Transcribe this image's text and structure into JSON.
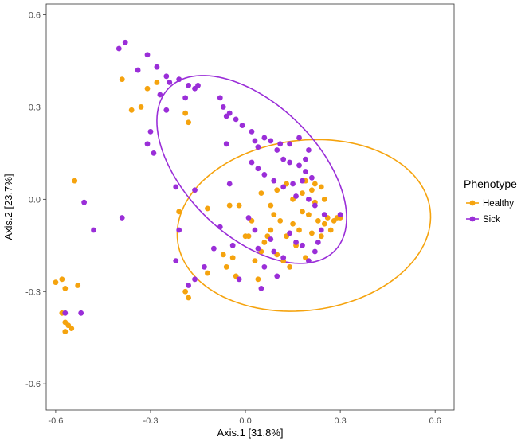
{
  "chart_data": {
    "type": "scatter",
    "title": "",
    "xlabel": "Axis.1   [31.8%]",
    "ylabel": "Axis.2   [23.7%]",
    "xlim": [
      -0.63,
      0.66
    ],
    "ylim": [
      -0.685,
      0.635
    ],
    "x_ticks": [
      -0.6,
      -0.3,
      0.0,
      0.3,
      0.6
    ],
    "x_tick_labels": [
      "-0.6",
      "-0.3",
      "0.0",
      "0.3",
      "0.6"
    ],
    "y_ticks": [
      -0.6,
      -0.3,
      0.0,
      0.3,
      0.6
    ],
    "y_tick_labels": [
      "-0.6",
      "-0.3",
      "0.0",
      "0.3",
      "0.6"
    ],
    "grid": false,
    "legend": {
      "title": "Phenotype",
      "placement": "right",
      "entries": [
        "Healthy",
        "Sick"
      ]
    },
    "series": [
      {
        "name": "Healthy",
        "color": "#F5A30E",
        "points": [
          [
            -0.6,
            -0.27
          ],
          [
            -0.58,
            -0.26
          ],
          [
            -0.57,
            -0.29
          ],
          [
            -0.58,
            -0.37
          ],
          [
            -0.57,
            -0.4
          ],
          [
            -0.57,
            -0.43
          ],
          [
            -0.56,
            -0.41
          ],
          [
            -0.55,
            -0.42
          ],
          [
            -0.53,
            -0.28
          ],
          [
            -0.54,
            0.06
          ],
          [
            -0.39,
            0.39
          ],
          [
            -0.36,
            0.29
          ],
          [
            -0.33,
            0.3
          ],
          [
            -0.31,
            0.36
          ],
          [
            -0.28,
            0.38
          ],
          [
            -0.19,
            0.28
          ],
          [
            -0.18,
            0.25
          ],
          [
            -0.19,
            -0.3
          ],
          [
            -0.18,
            -0.32
          ],
          [
            -0.12,
            -0.24
          ],
          [
            -0.07,
            -0.18
          ],
          [
            -0.06,
            -0.22
          ],
          [
            -0.04,
            -0.19
          ],
          [
            -0.03,
            -0.25
          ],
          [
            -0.02,
            -0.02
          ],
          [
            0.0,
            -0.12
          ],
          [
            0.01,
            -0.12
          ],
          [
            0.02,
            -0.07
          ],
          [
            0.03,
            -0.2
          ],
          [
            0.04,
            -0.26
          ],
          [
            0.05,
            -0.17
          ],
          [
            0.06,
            -0.14
          ],
          [
            0.07,
            -0.12
          ],
          [
            0.08,
            -0.1
          ],
          [
            0.09,
            -0.05
          ],
          [
            0.1,
            -0.18
          ],
          [
            0.11,
            -0.07
          ],
          [
            0.12,
            -0.2
          ],
          [
            0.13,
            -0.12
          ],
          [
            0.14,
            -0.22
          ],
          [
            0.15,
            -0.08
          ],
          [
            0.16,
            -0.15
          ],
          [
            0.17,
            -0.1
          ],
          [
            0.18,
            -0.04
          ],
          [
            0.19,
            -0.19
          ],
          [
            0.2,
            -0.05
          ],
          [
            0.21,
            -0.11
          ],
          [
            0.22,
            -0.01
          ],
          [
            0.23,
            -0.07
          ],
          [
            0.24,
            -0.12
          ],
          [
            0.25,
            -0.08
          ],
          [
            0.26,
            -0.06
          ],
          [
            0.27,
            -0.1
          ],
          [
            0.28,
            -0.07
          ],
          [
            0.29,
            -0.06
          ],
          [
            0.3,
            -0.06
          ],
          [
            0.22,
            0.05
          ],
          [
            0.24,
            0.04
          ],
          [
            0.25,
            0.0
          ],
          [
            0.19,
            0.06
          ],
          [
            0.18,
            0.02
          ],
          [
            0.21,
            0.03
          ],
          [
            0.13,
            0.05
          ],
          [
            0.1,
            0.03
          ],
          [
            0.15,
            0.0
          ],
          [
            0.08,
            -0.02
          ],
          [
            0.05,
            0.02
          ],
          [
            -0.05,
            -0.02
          ],
          [
            -0.12,
            -0.03
          ],
          [
            -0.21,
            -0.04
          ]
        ]
      },
      {
        "name": "Sick",
        "color": "#9A2ED8",
        "points": [
          [
            -0.4,
            0.49
          ],
          [
            -0.38,
            0.51
          ],
          [
            -0.31,
            0.47
          ],
          [
            -0.28,
            0.43
          ],
          [
            -0.25,
            0.4
          ],
          [
            -0.24,
            0.38
          ],
          [
            -0.21,
            0.39
          ],
          [
            -0.18,
            0.37
          ],
          [
            -0.16,
            0.36
          ],
          [
            -0.15,
            0.37
          ],
          [
            -0.19,
            0.33
          ],
          [
            -0.27,
            0.34
          ],
          [
            -0.25,
            0.29
          ],
          [
            -0.08,
            0.33
          ],
          [
            -0.07,
            0.3
          ],
          [
            -0.06,
            0.27
          ],
          [
            -0.05,
            0.28
          ],
          [
            -0.03,
            0.26
          ],
          [
            -0.01,
            0.24
          ],
          [
            0.02,
            0.22
          ],
          [
            0.03,
            0.19
          ],
          [
            0.04,
            0.17
          ],
          [
            0.06,
            0.2
          ],
          [
            0.08,
            0.19
          ],
          [
            0.1,
            0.16
          ],
          [
            0.12,
            0.13
          ],
          [
            0.14,
            0.12
          ],
          [
            0.17,
            0.11
          ],
          [
            0.19,
            0.09
          ],
          [
            0.21,
            0.07
          ],
          [
            0.19,
            0.13
          ],
          [
            0.2,
            0.16
          ],
          [
            -0.31,
            0.18
          ],
          [
            -0.29,
            0.15
          ],
          [
            -0.06,
            0.18
          ],
          [
            0.02,
            0.12
          ],
          [
            0.04,
            0.1
          ],
          [
            0.06,
            0.08
          ],
          [
            0.09,
            0.06
          ],
          [
            0.12,
            0.04
          ],
          [
            0.15,
            0.05
          ],
          [
            0.16,
            0.01
          ],
          [
            0.18,
            0.06
          ],
          [
            0.2,
            0.0
          ],
          [
            0.22,
            -0.02
          ],
          [
            0.25,
            -0.05
          ],
          [
            0.24,
            -0.1
          ],
          [
            0.23,
            -0.14
          ],
          [
            0.22,
            -0.17
          ],
          [
            0.2,
            -0.2
          ],
          [
            0.18,
            -0.15
          ],
          [
            0.16,
            -0.14
          ],
          [
            0.14,
            -0.11
          ],
          [
            0.12,
            -0.19
          ],
          [
            0.1,
            -0.25
          ],
          [
            0.09,
            -0.17
          ],
          [
            0.08,
            -0.13
          ],
          [
            0.06,
            -0.22
          ],
          [
            0.05,
            -0.29
          ],
          [
            0.04,
            -0.16
          ],
          [
            0.03,
            -0.1
          ],
          [
            0.01,
            -0.06
          ],
          [
            -0.02,
            -0.26
          ],
          [
            -0.04,
            -0.15
          ],
          [
            -0.08,
            -0.09
          ],
          [
            -0.1,
            -0.16
          ],
          [
            -0.13,
            -0.22
          ],
          [
            -0.16,
            -0.26
          ],
          [
            -0.18,
            -0.28
          ],
          [
            -0.22,
            -0.2
          ],
          [
            -0.21,
            -0.1
          ],
          [
            -0.22,
            0.04
          ],
          [
            -0.3,
            0.22
          ],
          [
            -0.34,
            0.42
          ],
          [
            -0.16,
            0.03
          ],
          [
            -0.05,
            0.05
          ],
          [
            0.11,
            0.18
          ],
          [
            0.14,
            0.18
          ],
          [
            0.17,
            0.2
          ],
          [
            0.3,
            -0.05
          ],
          [
            -0.51,
            -0.01
          ],
          [
            -0.48,
            -0.1
          ],
          [
            -0.39,
            -0.06
          ],
          [
            -0.52,
            -0.37
          ],
          [
            -0.57,
            -0.37
          ]
        ]
      }
    ],
    "ellipses": [
      {
        "name": "Healthy",
        "color": "#F5A30E",
        "center": [
          0.185,
          -0.085
        ],
        "rx": 0.4026,
        "ry": 0.2764,
        "angle_deg": 7.7
      },
      {
        "name": "Sick",
        "color": "#9A2ED8",
        "center": [
          0.02,
          0.097
        ],
        "rx": 0.3726,
        "ry": 0.2108,
        "angle_deg": -46.0
      }
    ]
  }
}
